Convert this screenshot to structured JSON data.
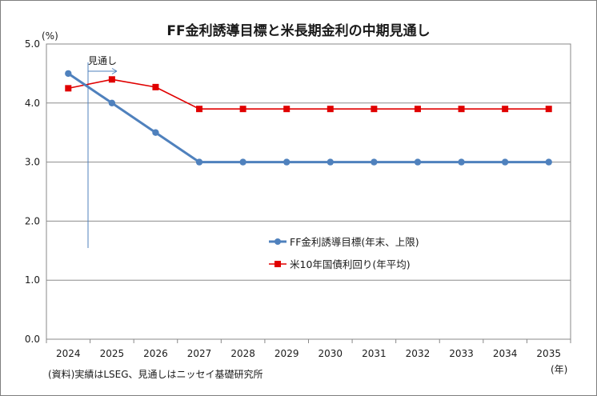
{
  "chart_data": {
    "type": "line",
    "title": "FF金利誘導目標と米長期金利の中期見通し",
    "y_unit": "(%)",
    "x_unit": "(年)",
    "source_note": "(資料)実績はLSEG、見通しはニッセイ基礎研究所",
    "forecast_label": "見通し",
    "forecast_start_x": "2025",
    "categories": [
      "2024",
      "2025",
      "2026",
      "2027",
      "2028",
      "2029",
      "2030",
      "2031",
      "2032",
      "2033",
      "2034",
      "2035"
    ],
    "y_ticks": [
      "0.0",
      "1.0",
      "2.0",
      "3.0",
      "4.0",
      "5.0"
    ],
    "ylim": [
      0,
      5
    ],
    "grid": true,
    "legend_position": "center-right",
    "series": [
      {
        "name": "FF金利誘導目標(年末、上限)",
        "color": "#4f81bd",
        "marker": "circle",
        "values": [
          4.5,
          4.0,
          3.5,
          3.0,
          3.0,
          3.0,
          3.0,
          3.0,
          3.0,
          3.0,
          3.0,
          3.0
        ]
      },
      {
        "name": "米10年国債利回り(年平均)",
        "color": "#e00000",
        "marker": "square",
        "values": [
          4.25,
          4.4,
          4.27,
          3.9,
          3.9,
          3.9,
          3.9,
          3.9,
          3.9,
          3.9,
          3.9,
          3.9
        ]
      }
    ]
  }
}
